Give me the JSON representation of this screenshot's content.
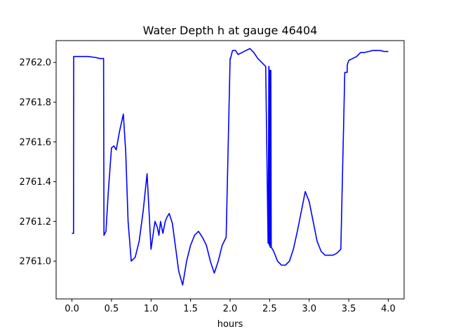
{
  "chart_data": {
    "type": "line",
    "title": "Water Depth h at gauge 46404",
    "xlabel": "hours",
    "ylabel": "",
    "xlim": [
      -0.2,
      4.2
    ],
    "ylim": [
      2760.81,
      2762.11
    ],
    "x_ticks": [
      0.0,
      0.5,
      1.0,
      1.5,
      2.0,
      2.5,
      3.0,
      3.5,
      4.0
    ],
    "x_tick_labels": [
      "0.0",
      "0.5",
      "1.0",
      "1.5",
      "2.0",
      "2.5",
      "3.0",
      "3.5",
      "4.0"
    ],
    "y_ticks": [
      2761.0,
      2761.2,
      2761.4,
      2761.6,
      2761.8,
      2762.0
    ],
    "y_tick_labels": [
      "2761.0",
      "2761.2",
      "2761.4",
      "2761.6",
      "2761.8",
      "2762.0"
    ],
    "grid": false,
    "legend": "none",
    "series": [
      {
        "color": "#0000ff",
        "x": [
          0.0,
          0.02,
          0.022,
          0.2,
          0.3,
          0.35,
          0.4,
          0.405,
          0.43,
          0.46,
          0.5,
          0.53,
          0.56,
          0.6,
          0.65,
          0.68,
          0.71,
          0.75,
          0.8,
          0.85,
          0.9,
          0.95,
          1.0,
          1.05,
          1.08,
          1.1,
          1.12,
          1.15,
          1.18,
          1.2,
          1.23,
          1.27,
          1.3,
          1.35,
          1.4,
          1.45,
          1.5,
          1.55,
          1.6,
          1.65,
          1.7,
          1.75,
          1.8,
          1.85,
          1.9,
          1.95,
          2.0,
          2.005,
          2.03,
          2.07,
          2.1,
          2.15,
          2.2,
          2.25,
          2.3,
          2.35,
          2.4,
          2.45,
          2.48,
          2.482,
          2.49,
          2.492,
          2.495,
          2.497,
          2.5,
          2.505,
          2.507,
          2.51,
          2.512,
          2.515,
          2.52,
          2.55,
          2.6,
          2.65,
          2.7,
          2.75,
          2.8,
          2.85,
          2.9,
          2.95,
          3.0,
          3.05,
          3.1,
          3.15,
          3.2,
          3.25,
          3.3,
          3.35,
          3.4,
          3.45,
          3.48,
          3.482,
          3.5,
          3.55,
          3.6,
          3.65,
          3.7,
          3.75,
          3.8,
          3.85,
          3.9,
          3.95,
          4.0
        ],
        "y": [
          2761.14,
          2761.14,
          2762.03,
          2762.03,
          2762.025,
          2762.02,
          2762.02,
          2761.13,
          2761.15,
          2761.35,
          2761.57,
          2761.58,
          2761.56,
          2761.65,
          2761.74,
          2761.55,
          2761.2,
          2761.0,
          2761.02,
          2761.1,
          2761.25,
          2761.44,
          2761.06,
          2761.2,
          2761.17,
          2761.13,
          2761.2,
          2761.14,
          2761.2,
          2761.22,
          2761.24,
          2761.19,
          2761.1,
          2760.95,
          2760.88,
          2761.0,
          2761.08,
          2761.13,
          2761.15,
          2761.12,
          2761.08,
          2761.0,
          2760.94,
          2761.0,
          2761.08,
          2761.12,
          2762.02,
          2762.02,
          2762.06,
          2762.06,
          2762.04,
          2762.05,
          2762.06,
          2762.07,
          2762.05,
          2762.02,
          2762.0,
          2761.98,
          2761.09,
          2761.09,
          2761.98,
          2761.98,
          2761.08,
          2761.08,
          2761.96,
          2761.96,
          2761.07,
          2761.07,
          2761.96,
          2761.96,
          2761.07,
          2761.05,
          2761.0,
          2760.98,
          2760.98,
          2761.0,
          2761.06,
          2761.15,
          2761.25,
          2761.35,
          2761.3,
          2761.2,
          2761.1,
          2761.05,
          2761.03,
          2761.03,
          2761.03,
          2761.04,
          2761.06,
          2761.95,
          2761.95,
          2761.99,
          2762.01,
          2762.02,
          2762.03,
          2762.05,
          2762.05,
          2762.055,
          2762.06,
          2762.06,
          2762.06,
          2762.055,
          2762.055
        ]
      }
    ]
  }
}
